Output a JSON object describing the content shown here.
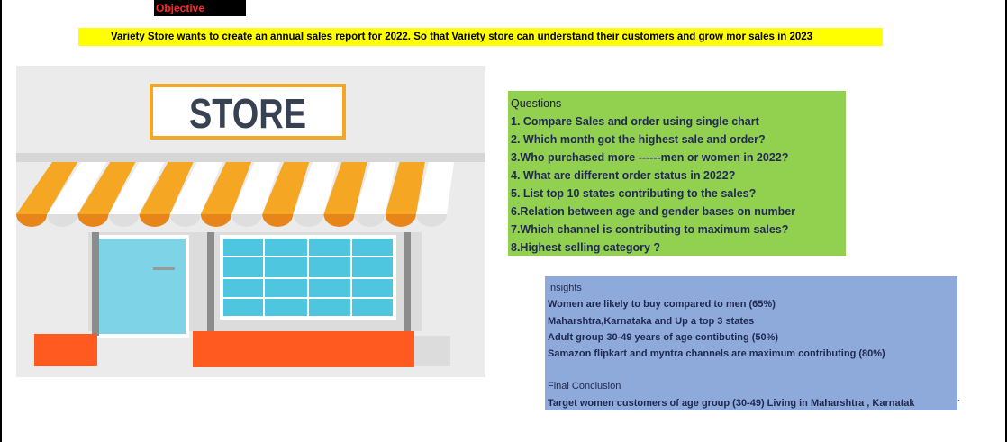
{
  "objective": {
    "label": "Objective"
  },
  "banner": {
    "text": "Variety Store wants to create an annual sales report for 2022. So that Variety store can understand their customers and grow mor sales in 2023"
  },
  "store_image": {
    "sign_text": "STORE"
  },
  "questions": {
    "title": "Questions",
    "items": [
      "1. Compare Sales and order using single chart",
      "2. Which month got the highest sale and order?",
      "3.Who purchased more  ------men or women in 2022?",
      "4. What are different order status in 2022?",
      "5. List top 10 states contributing to the sales?",
      "6.Relation between age and gender bases on number",
      "7.Which channel is contributing to maximum sales?",
      "8.Highest selling category ?"
    ]
  },
  "insights": {
    "title": "Insights",
    "items": [
      "Women are likely to buy compared to men (65%)",
      "Maharshtra,Karnataka and Up a top 3 states",
      "Adult group 30-49 years of age contibuting (50%)",
      "Samazon flipkart and myntra channels are maximum contributing (80%)"
    ],
    "conclusion_title": "Final Conclusion",
    "conclusion_text": "Target women customers of age group (30-49) Living in Maharshtra , Karnatak",
    "conclusion_tail": "."
  },
  "colors": {
    "banner": "#ffff00",
    "questions_bg": "#92d050",
    "insights_bg": "#8eaadb",
    "objective_text": "#ff2a2a",
    "awning_orange": "#f5a623",
    "store_window": "#4fc6e0"
  }
}
